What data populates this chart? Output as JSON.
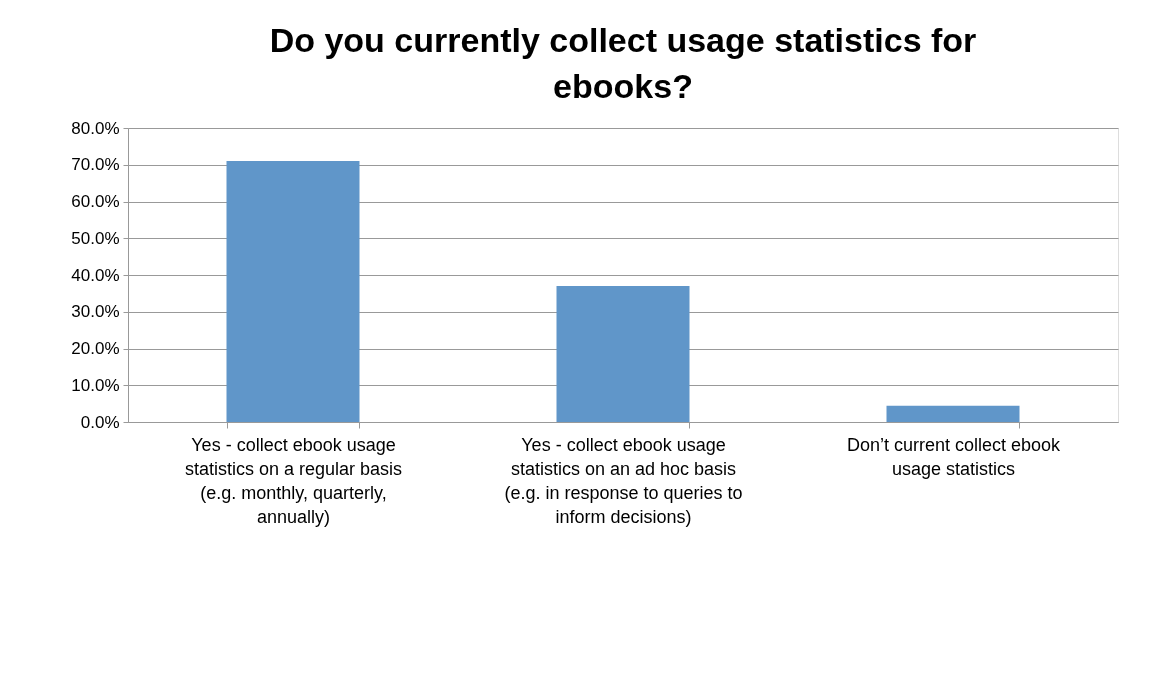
{
  "chart_data": {
    "type": "bar",
    "title": "Do you currently collect usage statistics for ebooks?",
    "categories": [
      "Yes - collect ebook usage statistics on a regular basis (e.g. monthly, quarterly, annually)",
      "Yes - collect ebook usage statistics on an ad hoc basis (e.g. in response to queries to inform decisions)",
      "Don’t current collect ebook usage statistics"
    ],
    "values": [
      71.0,
      37.0,
      4.4
    ],
    "color": "#6096c9",
    "ylim": [
      0,
      80
    ],
    "yticks": [
      {
        "value": 0,
        "label": "0.0%"
      },
      {
        "value": 10,
        "label": "10.0%"
      },
      {
        "value": 20,
        "label": "20.0%"
      },
      {
        "value": 30,
        "label": "30.0%"
      },
      {
        "value": 40,
        "label": "40.0%"
      },
      {
        "value": 50,
        "label": "50.0%"
      },
      {
        "value": 60,
        "label": "60.0%"
      },
      {
        "value": 70,
        "label": "70.0%"
      },
      {
        "value": 80,
        "label": "80.0%"
      }
    ],
    "grid": "y"
  }
}
